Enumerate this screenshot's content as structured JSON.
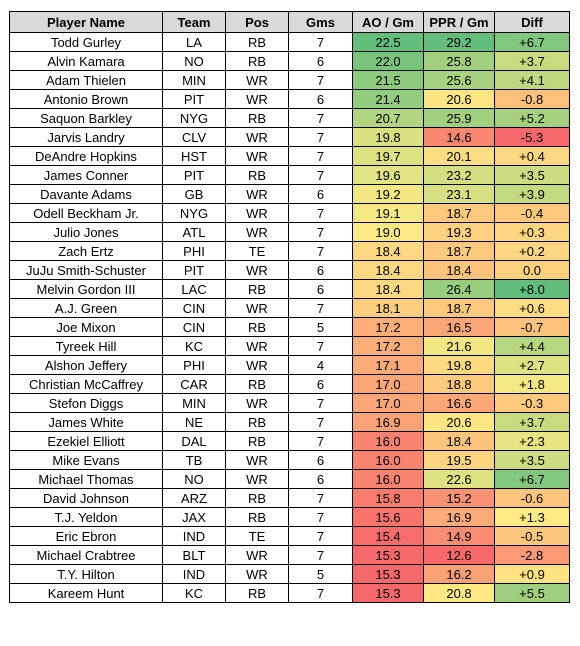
{
  "chart_data": {
    "type": "table",
    "columns": [
      "Player Name",
      "Team",
      "Pos",
      "Gms",
      "AO / Gm",
      "PPR / Gm",
      "Diff"
    ],
    "rows": [
      [
        "Todd Gurley",
        "LA",
        "RB",
        "7",
        "22.5",
        "29.2",
        "+6.7"
      ],
      [
        "Alvin Kamara",
        "NO",
        "RB",
        "6",
        "22.0",
        "25.8",
        "+3.7"
      ],
      [
        "Adam Thielen",
        "MIN",
        "WR",
        "7",
        "21.5",
        "25.6",
        "+4.1"
      ],
      [
        "Antonio Brown",
        "PIT",
        "WR",
        "6",
        "21.4",
        "20.6",
        "-0.8"
      ],
      [
        "Saquon Barkley",
        "NYG",
        "RB",
        "7",
        "20.7",
        "25.9",
        "+5.2"
      ],
      [
        "Jarvis Landry",
        "CLV",
        "WR",
        "7",
        "19.8",
        "14.6",
        "-5.3"
      ],
      [
        "DeAndre Hopkins",
        "HST",
        "WR",
        "7",
        "19.7",
        "20.1",
        "+0.4"
      ],
      [
        "James Conner",
        "PIT",
        "RB",
        "7",
        "19.6",
        "23.2",
        "+3.5"
      ],
      [
        "Davante Adams",
        "GB",
        "WR",
        "6",
        "19.2",
        "23.1",
        "+3.9"
      ],
      [
        "Odell Beckham Jr.",
        "NYG",
        "WR",
        "7",
        "19.1",
        "18.7",
        "-0.4"
      ],
      [
        "Julio Jones",
        "ATL",
        "WR",
        "7",
        "19.0",
        "19.3",
        "+0.3"
      ],
      [
        "Zach Ertz",
        "PHI",
        "TE",
        "7",
        "18.4",
        "18.7",
        "+0.2"
      ],
      [
        "JuJu Smith-Schuster",
        "PIT",
        "WR",
        "6",
        "18.4",
        "18.4",
        "0.0"
      ],
      [
        "Melvin Gordon III",
        "LAC",
        "RB",
        "6",
        "18.4",
        "26.4",
        "+8.0"
      ],
      [
        "A.J. Green",
        "CIN",
        "WR",
        "7",
        "18.1",
        "18.7",
        "+0.6"
      ],
      [
        "Joe Mixon",
        "CIN",
        "RB",
        "5",
        "17.2",
        "16.5",
        "-0.7"
      ],
      [
        "Tyreek Hill",
        "KC",
        "WR",
        "7",
        "17.2",
        "21.6",
        "+4.4"
      ],
      [
        "Alshon Jeffery",
        "PHI",
        "WR",
        "4",
        "17.1",
        "19.8",
        "+2.7"
      ],
      [
        "Christian McCaffrey",
        "CAR",
        "RB",
        "6",
        "17.0",
        "18.8",
        "+1.8"
      ],
      [
        "Stefon Diggs",
        "MIN",
        "WR",
        "7",
        "17.0",
        "16.6",
        "-0.3"
      ],
      [
        "James White",
        "NE",
        "RB",
        "7",
        "16.9",
        "20.6",
        "+3.7"
      ],
      [
        "Ezekiel Elliott",
        "DAL",
        "RB",
        "7",
        "16.0",
        "18.4",
        "+2.3"
      ],
      [
        "Mike Evans",
        "TB",
        "WR",
        "6",
        "16.0",
        "19.5",
        "+3.5"
      ],
      [
        "Michael Thomas",
        "NO",
        "WR",
        "6",
        "16.0",
        "22.6",
        "+6.7"
      ],
      [
        "David Johnson",
        "ARZ",
        "RB",
        "7",
        "15.8",
        "15.2",
        "-0.6"
      ],
      [
        "T.J. Yeldon",
        "JAX",
        "RB",
        "7",
        "15.6",
        "16.9",
        "+1.3"
      ],
      [
        "Eric Ebron",
        "IND",
        "TE",
        "7",
        "15.4",
        "14.9",
        "-0.5"
      ],
      [
        "Michael Crabtree",
        "BLT",
        "WR",
        "7",
        "15.3",
        "12.6",
        "-2.8"
      ],
      [
        "T.Y. Hilton",
        "IND",
        "WR",
        "5",
        "15.3",
        "16.2",
        "+0.9"
      ],
      [
        "Kareem Hunt",
        "KC",
        "RB",
        "7",
        "15.3",
        "20.8",
        "+5.5"
      ]
    ],
    "heatmap_columns": [
      4,
      5,
      6
    ],
    "color_scale": {
      "low": "#f8696b",
      "mid": "#ffeb84",
      "high": "#63be7b"
    },
    "header_fill": "#d9d9d9"
  }
}
